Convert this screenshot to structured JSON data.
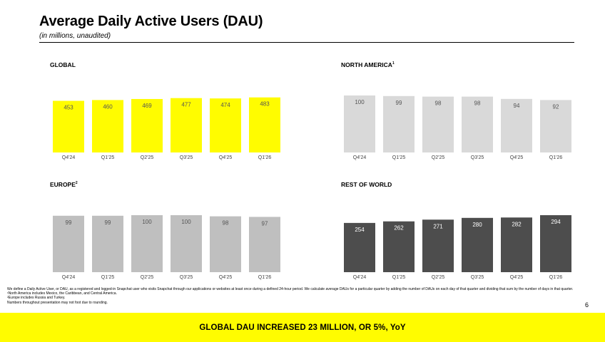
{
  "header": {
    "title": "Average Daily Active Users (DAU)",
    "subtitle": "(in millions, unaudited)"
  },
  "chart_data": [
    {
      "type": "bar",
      "title": "GLOBAL",
      "title_sup": "",
      "categories": [
        "Q4'24",
        "Q1'25",
        "Q2'25",
        "Q3'25",
        "Q4'25",
        "Q1'26"
      ],
      "values": [
        453,
        460,
        469,
        477,
        474,
        483
      ],
      "labels": [
        "453",
        "460",
        "469",
        "477",
        "474",
        "483"
      ],
      "ylim": [
        0,
        500
      ],
      "bar_color": "#FFFC00",
      "label_color": "#555555",
      "grid": false
    },
    {
      "type": "bar",
      "title": "NORTH AMERICA",
      "title_sup": "1",
      "categories": [
        "Q4'24",
        "Q1'25",
        "Q2'25",
        "Q3'25",
        "Q4'25",
        "Q1'26"
      ],
      "values": [
        100,
        99,
        98,
        98,
        94,
        92
      ],
      "labels": [
        "100",
        "99",
        "98",
        "98",
        "94",
        "92"
      ],
      "ylim": [
        0,
        100
      ],
      "bar_color": "#D9D9D9",
      "label_color": "#555555",
      "grid": false
    },
    {
      "type": "bar",
      "title": "EUROPE",
      "title_sup": "2",
      "categories": [
        "Q4'24",
        "Q1'25",
        "Q2'25",
        "Q3'25",
        "Q4'25",
        "Q1'26"
      ],
      "values": [
        99,
        99,
        100,
        100,
        98,
        97
      ],
      "labels": [
        "99",
        "99",
        "100",
        "100",
        "98",
        "97"
      ],
      "ylim": [
        0,
        100
      ],
      "bar_color": "#BFBFBF",
      "label_color": "#555555",
      "grid": false
    },
    {
      "type": "bar",
      "title": "REST OF WORLD",
      "title_sup": "",
      "categories": [
        "Q4'24",
        "Q1'25",
        "Q2'25",
        "Q3'25",
        "Q4'25",
        "Q1'26"
      ],
      "values": [
        254,
        262,
        271,
        280,
        282,
        294
      ],
      "labels": [
        "254",
        "262",
        "271",
        "280",
        "282",
        "294"
      ],
      "ylim": [
        0,
        294
      ],
      "bar_color": "#4D4D4D",
      "label_color": "#FFFFFF",
      "grid": false
    }
  ],
  "footnotes": [
    "We define a Daily Active User, or DAU, as a registered and logged-in Snapchat user who visits Snapchat through our applications or websites at least once during a defined 24-hour period. We calculate average DAUs for a particular quarter by adding the number of DAUs on each day of that quarter and dividing that sum by the number of days in that quarter.",
    "¹North America includes Mexico, the Caribbean, and Central America.",
    "²Europe includes Russia and Turkey.",
    "Numbers throughout presentation may not foot due to rounding."
  ],
  "page_number": "6",
  "banner": {
    "text": "GLOBAL DAU INCREASED 23 MILLION, OR 5%, YoY",
    "color": "#FFFC00"
  }
}
